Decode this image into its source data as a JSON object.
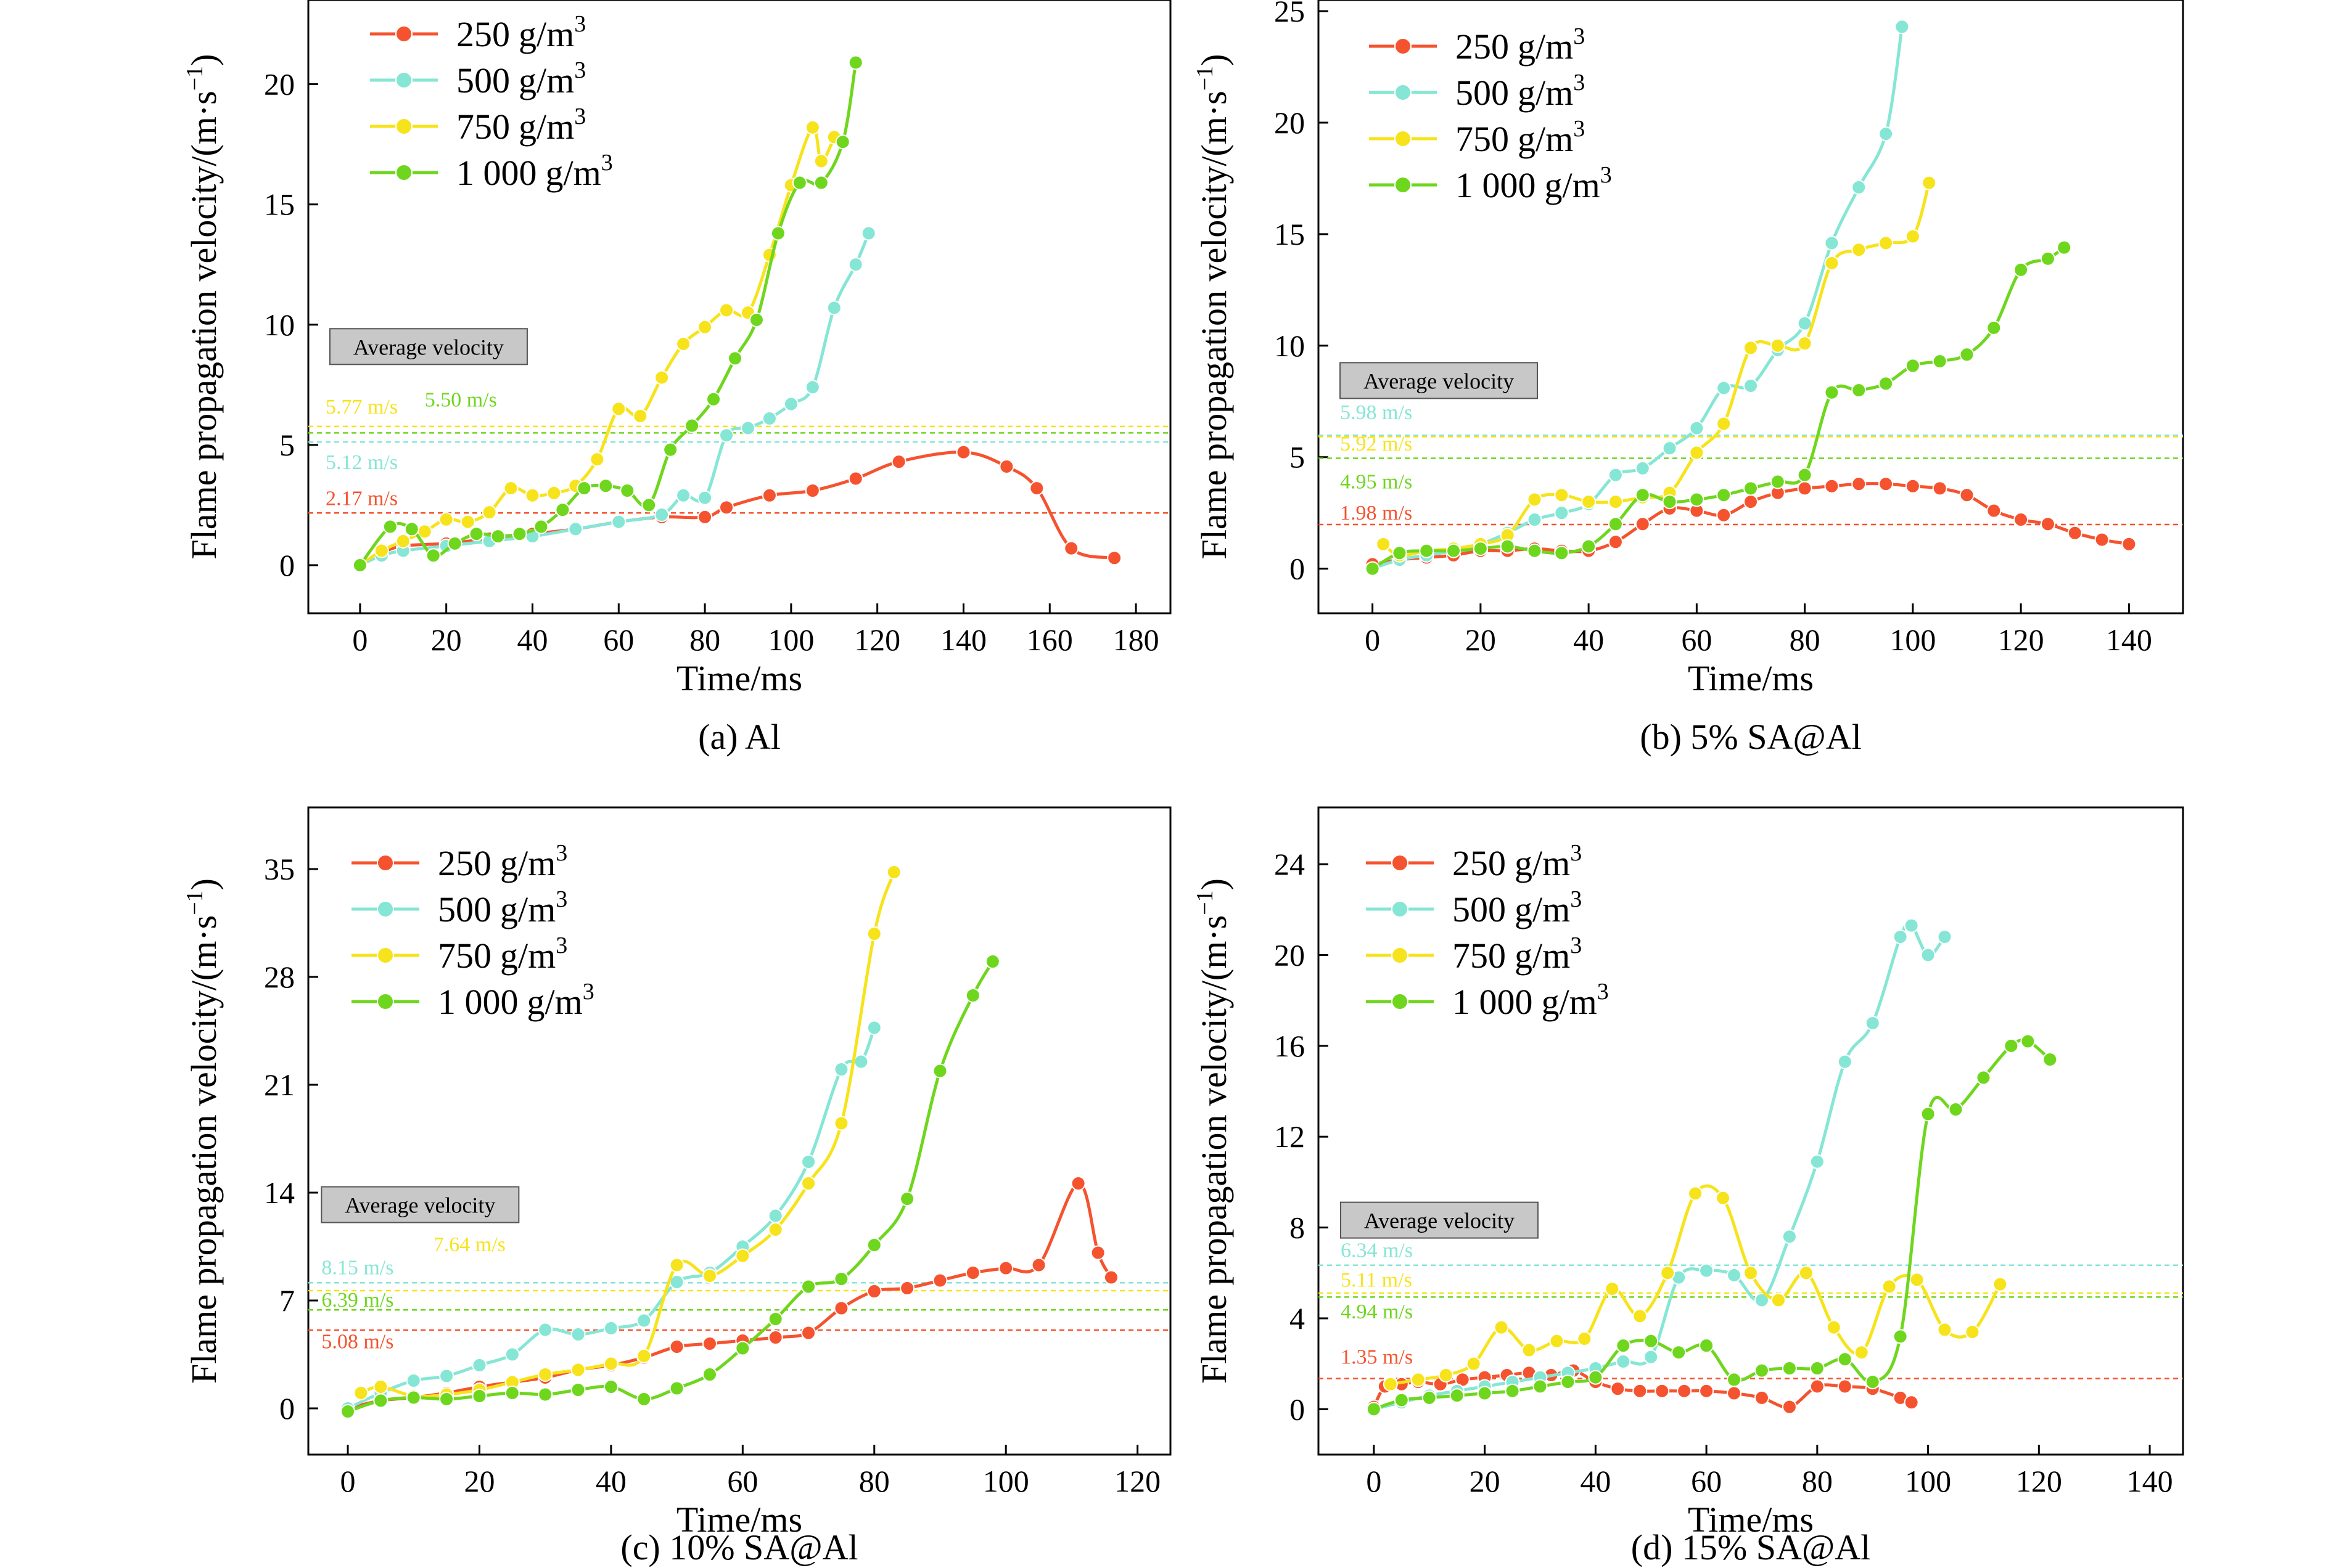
{
  "colors": {
    "c250": "#f5532f",
    "c500": "#86e6d5",
    "c750": "#f7e31c",
    "c1000": "#6fd61e"
  },
  "legend_suffix": "g/m",
  "legend_sup": "3",
  "chart_data": [
    {
      "type": "line",
      "caption": "(a) Al",
      "xlabel": "Time/ms",
      "ylabel_main": "Flame propagation velocity/(m·s",
      "ylabel_sup": "−1",
      "ylabel_end": ")",
      "xlim": [
        -12,
        188
      ],
      "ylim": [
        -2,
        23.5
      ],
      "xticks": [
        0,
        20,
        40,
        60,
        80,
        100,
        120,
        140,
        160,
        180
      ],
      "yticks": [
        0,
        5,
        10,
        15,
        20
      ],
      "avg_box_label": "Average velocity",
      "avg_box": {
        "x": -7,
        "y": 8.5
      },
      "averages": [
        {
          "label": "5.77 m/s",
          "value": 5.77,
          "color_key": "c750",
          "lx": -8,
          "ly": 6.3
        },
        {
          "label": "5.50 m/s",
          "value": 5.5,
          "color_key": "c1000",
          "lx": 15,
          "ly": 6.6
        },
        {
          "label": "5.12 m/s",
          "value": 5.12,
          "color_key": "c500",
          "lx": -8,
          "ly": 4.0
        },
        {
          "label": "2.17 m/s",
          "value": 2.17,
          "color_key": "c250",
          "lx": -8,
          "ly": 2.5
        }
      ],
      "series": [
        {
          "name": "250",
          "color_key": "c250",
          "x": [
            0,
            5,
            10,
            20,
            30,
            40,
            50,
            60,
            70,
            80,
            85,
            95,
            105,
            115,
            125,
            140,
            150,
            157,
            165,
            175
          ],
          "y": [
            0,
            0.5,
            0.8,
            0.9,
            1.1,
            1.3,
            1.5,
            1.8,
            2.0,
            2.0,
            2.4,
            2.9,
            3.1,
            3.6,
            4.3,
            4.7,
            4.1,
            3.2,
            0.7,
            0.3
          ]
        },
        {
          "name": "500",
          "color_key": "c500",
          "x": [
            0,
            5,
            10,
            20,
            30,
            40,
            50,
            60,
            70,
            75,
            80,
            85,
            90,
            95,
            100,
            105,
            110,
            115,
            118
          ],
          "y": [
            0,
            0.4,
            0.6,
            0.8,
            1.0,
            1.2,
            1.5,
            1.8,
            2.1,
            2.9,
            2.8,
            5.4,
            5.7,
            6.1,
            6.7,
            7.4,
            10.7,
            12.5,
            13.8
          ]
        },
        {
          "name": "750",
          "color_key": "c750",
          "x": [
            0,
            5,
            10,
            15,
            20,
            25,
            30,
            35,
            40,
            45,
            50,
            55,
            60,
            65,
            70,
            75,
            80,
            85,
            90,
            95,
            100,
            105,
            107,
            110
          ],
          "y": [
            0,
            0.6,
            1.0,
            1.4,
            1.9,
            1.8,
            2.2,
            3.2,
            2.9,
            3.0,
            3.3,
            4.4,
            6.5,
            6.2,
            7.8,
            9.2,
            9.9,
            10.6,
            10.5,
            12.9,
            15.8,
            18.2,
            16.8,
            17.8
          ]
        },
        {
          "name": "1 000",
          "color_key": "c1000",
          "x": [
            0,
            7,
            12,
            17,
            22,
            27,
            32,
            37,
            42,
            47,
            52,
            57,
            62,
            67,
            72,
            77,
            82,
            87,
            92,
            97,
            102,
            107,
            112,
            115
          ],
          "y": [
            0,
            1.6,
            1.5,
            0.4,
            0.9,
            1.3,
            1.2,
            1.3,
            1.6,
            2.3,
            3.2,
            3.3,
            3.1,
            2.5,
            4.8,
            5.8,
            6.9,
            8.6,
            10.2,
            13.8,
            15.9,
            15.9,
            17.6,
            20.9
          ]
        }
      ]
    },
    {
      "type": "line",
      "caption": "(b) 5% SA@Al",
      "xlabel": "Time/ms",
      "ylabel_main": "Flame propagation velocity/(m·s",
      "ylabel_sup": "−1",
      "ylabel_end": ")",
      "xlim": [
        -10,
        150
      ],
      "ylim": [
        -2,
        25.5
      ],
      "xticks": [
        0,
        20,
        40,
        60,
        80,
        100,
        120,
        140
      ],
      "yticks": [
        0,
        5,
        10,
        15,
        20,
        25
      ],
      "avg_box_label": "Average velocity",
      "avg_box": {
        "x": -6,
        "y": 7.8
      },
      "averages": [
        {
          "label": "5.98 m/s",
          "value": 5.98,
          "color_key": "c500",
          "lx": -6,
          "ly": 6.7
        },
        {
          "label": "5.92 m/s",
          "value": 5.92,
          "color_key": "c750",
          "lx": -6,
          "ly": 5.3
        },
        {
          "label": "4.95 m/s",
          "value": 4.95,
          "color_key": "c1000",
          "lx": -6,
          "ly": 3.6
        },
        {
          "label": "1.98 m/s",
          "value": 1.98,
          "color_key": "c250",
          "lx": -6,
          "ly": 2.2
        }
      ],
      "series": [
        {
          "name": "250",
          "color_key": "c250",
          "x": [
            0,
            5,
            10,
            15,
            20,
            25,
            30,
            35,
            40,
            45,
            50,
            55,
            60,
            65,
            70,
            75,
            80,
            85,
            90,
            95,
            100,
            105,
            110,
            115,
            120,
            125,
            130,
            135,
            140
          ],
          "y": [
            0.2,
            0.4,
            0.5,
            0.6,
            0.8,
            0.8,
            0.9,
            0.8,
            0.8,
            1.2,
            2.0,
            2.7,
            2.6,
            2.4,
            3.0,
            3.4,
            3.6,
            3.7,
            3.8,
            3.8,
            3.7,
            3.6,
            3.3,
            2.6,
            2.2,
            2.0,
            1.6,
            1.3,
            1.1
          ]
        },
        {
          "name": "500",
          "color_key": "c500",
          "x": [
            0,
            5,
            10,
            15,
            20,
            25,
            30,
            35,
            40,
            45,
            50,
            55,
            60,
            65,
            70,
            75,
            80,
            85,
            90,
            95,
            98
          ],
          "y": [
            0,
            0.4,
            0.6,
            0.8,
            1.1,
            1.6,
            2.2,
            2.5,
            2.9,
            4.2,
            4.5,
            5.4,
            6.3,
            8.1,
            8.2,
            9.8,
            11.0,
            14.6,
            17.1,
            19.5,
            24.3
          ]
        },
        {
          "name": "750",
          "color_key": "c750",
          "x": [
            2,
            5,
            10,
            15,
            20,
            25,
            30,
            35,
            40,
            45,
            50,
            55,
            60,
            65,
            70,
            75,
            80,
            85,
            90,
            95,
            100,
            103
          ],
          "y": [
            1.1,
            0.6,
            0.8,
            0.9,
            1.1,
            1.5,
            3.1,
            3.3,
            3.0,
            3.0,
            3.2,
            3.4,
            5.2,
            6.5,
            9.9,
            10.0,
            10.1,
            13.7,
            14.3,
            14.6,
            14.9,
            17.3
          ]
        },
        {
          "name": "1 000",
          "color_key": "c1000",
          "x": [
            0,
            5,
            10,
            15,
            20,
            25,
            30,
            35,
            40,
            45,
            50,
            55,
            60,
            65,
            70,
            75,
            80,
            85,
            90,
            95,
            100,
            105,
            110,
            115,
            120,
            125,
            128
          ],
          "y": [
            0,
            0.7,
            0.8,
            0.8,
            0.9,
            1.0,
            0.8,
            0.7,
            1.0,
            2.0,
            3.3,
            3.0,
            3.1,
            3.3,
            3.6,
            3.9,
            4.2,
            7.9,
            8.0,
            8.3,
            9.1,
            9.3,
            9.6,
            10.8,
            13.4,
            13.9,
            14.4
          ]
        }
      ]
    },
    {
      "type": "line",
      "caption": "(c) 10% SA@Al",
      "xlabel": "Time/ms",
      "ylabel_main": "Flame propagation velocity/(m·s",
      "ylabel_sup": "−1",
      "ylabel_end": ")",
      "xlim": [
        -6,
        125
      ],
      "ylim": [
        -3,
        39
      ],
      "xticks": [
        0,
        20,
        40,
        60,
        80,
        100,
        120
      ],
      "yticks": [
        0,
        7,
        14,
        21,
        28,
        35
      ],
      "avg_box_label": "Average velocity",
      "avg_box": {
        "x": -4,
        "y": 12.3
      },
      "averages": [
        {
          "label": "7.64 m/s",
          "value": 7.64,
          "color_key": "c750",
          "lx": 13,
          "ly": 10.2
        },
        {
          "label": "8.15 m/s",
          "value": 8.15,
          "color_key": "c500",
          "lx": -4,
          "ly": 8.7
        },
        {
          "label": "6.39 m/s",
          "value": 6.39,
          "color_key": "c1000",
          "lx": -4,
          "ly": 6.6
        },
        {
          "label": "5.08 m/s",
          "value": 5.08,
          "color_key": "c250",
          "lx": -4,
          "ly": 3.9
        }
      ],
      "series": [
        {
          "name": "250",
          "color_key": "c250",
          "x": [
            0,
            5,
            10,
            15,
            20,
            25,
            30,
            35,
            40,
            45,
            50,
            55,
            60,
            65,
            70,
            75,
            80,
            85,
            90,
            95,
            100,
            105,
            111,
            114,
            116
          ],
          "y": [
            0,
            0.5,
            0.7,
            1.0,
            1.4,
            1.7,
            2.0,
            2.5,
            2.8,
            3.3,
            4.0,
            4.2,
            4.4,
            4.6,
            4.9,
            6.5,
            7.6,
            7.8,
            8.3,
            8.8,
            9.1,
            9.3,
            14.6,
            10.1,
            8.5
          ]
        },
        {
          "name": "500",
          "color_key": "c500",
          "x": [
            0,
            5,
            10,
            15,
            20,
            25,
            30,
            35,
            40,
            45,
            50,
            55,
            60,
            65,
            70,
            75,
            78,
            80
          ],
          "y": [
            0,
            1.0,
            1.8,
            2.1,
            2.8,
            3.5,
            5.1,
            4.8,
            5.2,
            5.7,
            8.2,
            8.8,
            10.5,
            12.5,
            16.0,
            22.0,
            22.5,
            24.7
          ]
        },
        {
          "name": "750",
          "color_key": "c750",
          "x": [
            2,
            5,
            10,
            15,
            20,
            25,
            30,
            35,
            40,
            45,
            50,
            55,
            60,
            65,
            70,
            75,
            80,
            83
          ],
          "y": [
            1.0,
            1.4,
            0.8,
            0.9,
            1.2,
            1.7,
            2.2,
            2.5,
            2.9,
            3.4,
            9.3,
            8.6,
            9.9,
            11.6,
            14.6,
            18.5,
            30.8,
            34.8
          ]
        },
        {
          "name": "1 000",
          "color_key": "c1000",
          "x": [
            0,
            5,
            10,
            15,
            20,
            25,
            30,
            35,
            40,
            45,
            50,
            55,
            60,
            65,
            70,
            75,
            80,
            85,
            90,
            95,
            98
          ],
          "y": [
            -0.2,
            0.5,
            0.7,
            0.6,
            0.8,
            1.0,
            0.9,
            1.2,
            1.4,
            0.6,
            1.3,
            2.2,
            3.9,
            5.8,
            7.9,
            8.4,
            10.6,
            13.6,
            21.9,
            26.8,
            29.0
          ]
        }
      ]
    },
    {
      "type": "line",
      "caption": "(d) 15% SA@Al",
      "xlabel": "Time/ms",
      "ylabel_main": "Flame propagation velocity/(m·s",
      "ylabel_sup": "−1",
      "ylabel_end": ")",
      "xlim": [
        -10,
        146
      ],
      "ylim": [
        -2,
        26.5
      ],
      "xticks": [
        0,
        20,
        40,
        60,
        80,
        100,
        120,
        140
      ],
      "yticks": [
        0,
        4,
        8,
        12,
        16,
        20,
        24
      ],
      "avg_box_label": "Average velocity",
      "avg_box": {
        "x": -6,
        "y": 7.7
      },
      "averages": [
        {
          "label": "6.34 m/s",
          "value": 6.34,
          "color_key": "c500",
          "lx": -6,
          "ly": 6.7
        },
        {
          "label": "5.11 m/s",
          "value": 5.11,
          "color_key": "c750",
          "lx": -6,
          "ly": 5.4
        },
        {
          "label": "4.94 m/s",
          "value": 4.94,
          "color_key": "c1000",
          "lx": -6,
          "ly": 4.0
        },
        {
          "label": "1.35 m/s",
          "value": 1.35,
          "color_key": "c250",
          "lx": -6,
          "ly": 2.0
        }
      ],
      "series": [
        {
          "name": "250",
          "color_key": "c250",
          "x": [
            0,
            2,
            5,
            8,
            12,
            16,
            20,
            24,
            28,
            32,
            36,
            40,
            44,
            48,
            52,
            56,
            60,
            65,
            70,
            75,
            80,
            85,
            90,
            95,
            97
          ],
          "y": [
            0.1,
            1.0,
            1.1,
            1.2,
            1.1,
            1.3,
            1.4,
            1.5,
            1.6,
            1.5,
            1.7,
            1.2,
            0.9,
            0.8,
            0.8,
            0.8,
            0.8,
            0.7,
            0.5,
            0.1,
            1.0,
            1.0,
            0.9,
            0.5,
            0.3
          ]
        },
        {
          "name": "500",
          "color_key": "c500",
          "x": [
            0,
            5,
            10,
            15,
            20,
            25,
            30,
            35,
            40,
            45,
            50,
            55,
            60,
            65,
            70,
            75,
            80,
            85,
            90,
            95,
            97,
            100,
            103
          ],
          "y": [
            0,
            0.3,
            0.6,
            0.8,
            1.0,
            1.2,
            1.4,
            1.6,
            1.8,
            2.1,
            2.3,
            5.8,
            6.1,
            5.9,
            4.8,
            7.6,
            10.9,
            15.3,
            17.0,
            20.8,
            21.3,
            20.0,
            20.8
          ]
        },
        {
          "name": "750",
          "color_key": "c750",
          "x": [
            3,
            8,
            13,
            18,
            23,
            28,
            33,
            38,
            43,
            48,
            53,
            58,
            63,
            68,
            73,
            78,
            83,
            88,
            93,
            98,
            103,
            108,
            113
          ],
          "y": [
            1.1,
            1.3,
            1.5,
            2.0,
            3.6,
            2.6,
            3.0,
            3.1,
            5.3,
            4.1,
            6.0,
            9.5,
            9.3,
            6.0,
            4.8,
            6.0,
            3.6,
            2.5,
            5.4,
            5.7,
            3.5,
            3.4,
            5.5
          ]
        },
        {
          "name": "1 000",
          "color_key": "c1000",
          "x": [
            0,
            5,
            10,
            15,
            20,
            25,
            30,
            35,
            40,
            45,
            50,
            55,
            60,
            65,
            70,
            75,
            80,
            85,
            90,
            95,
            100,
            105,
            110,
            115,
            118,
            122
          ],
          "y": [
            0,
            0.4,
            0.5,
            0.6,
            0.7,
            0.8,
            1.0,
            1.2,
            1.4,
            2.8,
            3.0,
            2.5,
            2.8,
            1.3,
            1.7,
            1.8,
            1.8,
            2.2,
            1.2,
            3.2,
            13.0,
            13.2,
            14.6,
            16.0,
            16.2,
            15.4
          ]
        }
      ]
    }
  ]
}
